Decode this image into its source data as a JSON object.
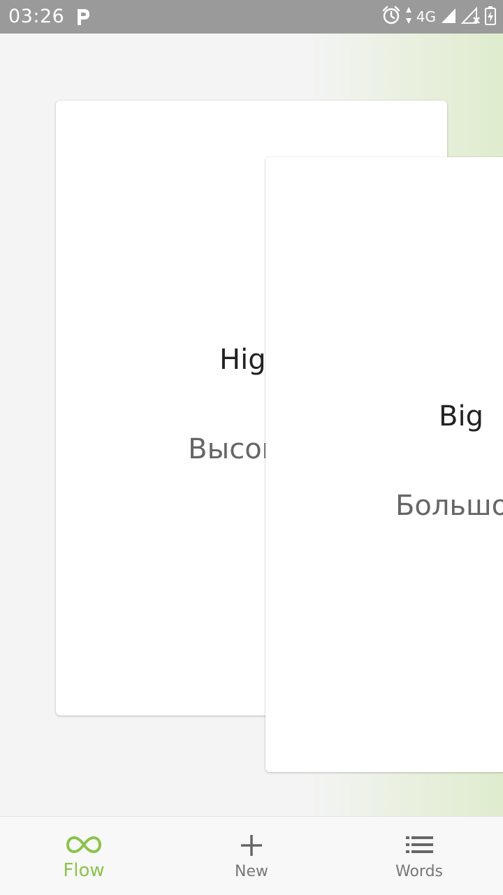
{
  "status_bar": {
    "time": "03:26",
    "network": "4G",
    "icons": [
      "p-icon",
      "alarm-icon",
      "data-arrows-icon",
      "signal-icon",
      "signal-no-sim-icon",
      "battery-icon"
    ]
  },
  "cards": [
    {
      "word": "High",
      "translation": "Высокий"
    },
    {
      "word": "Big",
      "translation": "Большой"
    }
  ],
  "bottom_nav": {
    "items": [
      {
        "label": "Flow",
        "icon": "infinity-icon",
        "active": true
      },
      {
        "label": "New",
        "icon": "plus-icon",
        "active": false
      },
      {
        "label": "Words",
        "icon": "list-icon",
        "active": false
      }
    ]
  },
  "colors": {
    "accent": "#8bc34a",
    "status_bar": "#9a9a9a",
    "background": "#f4f4f4",
    "gradient_edge": "#dfeccd",
    "card": "#ffffff",
    "inactive_nav": "#777777"
  }
}
